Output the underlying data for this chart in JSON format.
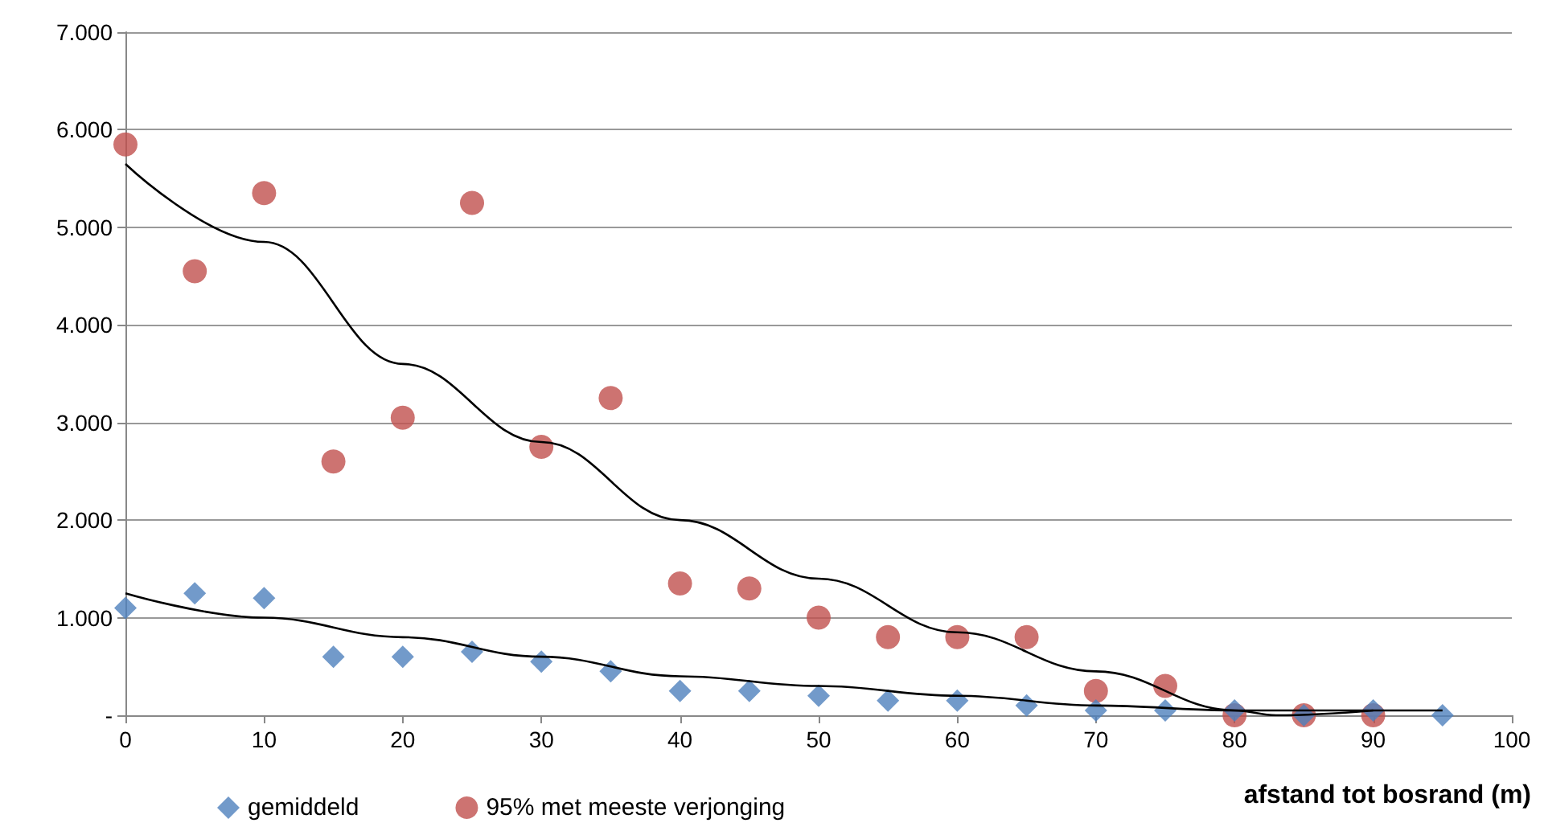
{
  "chart_data": {
    "type": "scatter",
    "xlabel": "afstand tot bosrand (m)",
    "xlim": [
      0,
      100
    ],
    "xticks": [
      0,
      10,
      20,
      30,
      40,
      50,
      60,
      70,
      80,
      90,
      100
    ],
    "ylim": [
      0,
      7000
    ],
    "yticks": [
      {
        "value": 0,
        "label": "-"
      },
      {
        "value": 1000,
        "label": "1.000"
      },
      {
        "value": 2000,
        "label": "2.000"
      },
      {
        "value": 3000,
        "label": "3.000"
      },
      {
        "value": 4000,
        "label": "4.000"
      },
      {
        "value": 5000,
        "label": "5.000"
      },
      {
        "value": 6000,
        "label": "6.000"
      },
      {
        "value": 7000,
        "label": "7.000"
      }
    ],
    "grid": "y",
    "legend": "bottom",
    "series": [
      {
        "name": "gemiddeld",
        "marker": "diamond",
        "color": "#4f81bd",
        "x": [
          0,
          5,
          10,
          15,
          20,
          25,
          30,
          35,
          40,
          45,
          50,
          55,
          60,
          65,
          70,
          75,
          80,
          85,
          90,
          95
        ],
        "values": [
          1100,
          1250,
          1200,
          600,
          600,
          650,
          550,
          450,
          250,
          250,
          200,
          150,
          150,
          100,
          50,
          50,
          50,
          0,
          50,
          0
        ]
      },
      {
        "name": "95% met meeste verjonging",
        "marker": "circle",
        "color": "#c0504d",
        "x": [
          0,
          5,
          10,
          15,
          20,
          25,
          30,
          35,
          40,
          45,
          50,
          55,
          60,
          65,
          70,
          75,
          80,
          85,
          90
        ],
        "values": [
          5850,
          4550,
          5350,
          2600,
          3050,
          5250,
          2750,
          3250,
          1350,
          1300,
          1000,
          800,
          800,
          800,
          250,
          300,
          0,
          0,
          0
        ]
      },
      {
        "type": "line",
        "marker": "none",
        "line_style": "solid",
        "color": "#000000",
        "x": [
          0,
          10,
          20,
          30,
          40,
          50,
          60,
          70,
          80,
          83,
          90
        ],
        "values": [
          5650,
          4850,
          3600,
          2800,
          2000,
          1400,
          850,
          450,
          50,
          0,
          50
        ]
      },
      {
        "type": "line",
        "marker": "none",
        "line_style": "solid",
        "color": "#000000",
        "x": [
          0,
          10,
          20,
          30,
          40,
          50,
          60,
          70,
          80,
          90,
          95
        ],
        "values": [
          1250,
          1000,
          800,
          600,
          400,
          300,
          200,
          100,
          50,
          50,
          50
        ]
      }
    ]
  }
}
